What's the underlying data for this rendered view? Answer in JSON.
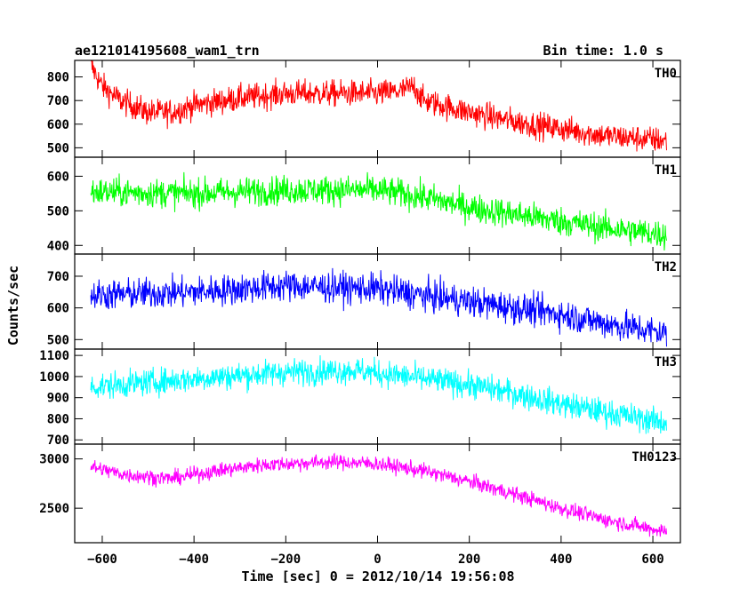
{
  "header": {
    "title": "ae121014195608_wam1_trn",
    "bin_time": "Bin time: 1.0 s"
  },
  "chart_data": {
    "type": "line",
    "x_range": [
      -660,
      660
    ],
    "x_ticks": [
      -600,
      -400,
      -200,
      0,
      200,
      400,
      600
    ],
    "xlabel": "Time [sec] 0 = 2012/10/14 19:56:08",
    "ylabel": "Counts/sec",
    "panels": [
      {
        "name": "TH0",
        "color": "#ff0000",
        "ylim": [
          460,
          870
        ],
        "y_ticks": [
          500,
          600,
          700,
          800
        ],
        "trend": [
          [
            -625,
            850
          ],
          [
            -600,
            760
          ],
          [
            -560,
            700
          ],
          [
            -500,
            650
          ],
          [
            -450,
            650
          ],
          [
            -400,
            680
          ],
          [
            -300,
            710
          ],
          [
            -200,
            730
          ],
          [
            -100,
            730
          ],
          [
            0,
            730
          ],
          [
            50,
            740
          ],
          [
            80,
            760
          ],
          [
            100,
            700
          ],
          [
            200,
            650
          ],
          [
            300,
            610
          ],
          [
            400,
            580
          ],
          [
            500,
            550
          ],
          [
            630,
            530
          ]
        ],
        "noise": 40
      },
      {
        "name": "TH1",
        "color": "#00ff00",
        "ylim": [
          375,
          655
        ],
        "y_ticks": [
          400,
          500,
          600
        ],
        "trend": [
          [
            -625,
            555
          ],
          [
            -400,
            550
          ],
          [
            -200,
            560
          ],
          [
            0,
            560
          ],
          [
            100,
            540
          ],
          [
            200,
            510
          ],
          [
            300,
            490
          ],
          [
            400,
            470
          ],
          [
            500,
            450
          ],
          [
            630,
            430
          ]
        ],
        "noise": 30
      },
      {
        "name": "TH2",
        "color": "#0000ff",
        "ylim": [
          470,
          770
        ],
        "y_ticks": [
          500,
          600,
          700
        ],
        "trend": [
          [
            -625,
            640
          ],
          [
            -400,
            650
          ],
          [
            -200,
            670
          ],
          [
            0,
            660
          ],
          [
            100,
            640
          ],
          [
            200,
            620
          ],
          [
            300,
            600
          ],
          [
            400,
            580
          ],
          [
            500,
            550
          ],
          [
            630,
            520
          ]
        ],
        "noise": 35
      },
      {
        "name": "TH3",
        "color": "#00ffff",
        "ylim": [
          680,
          1130
        ],
        "y_ticks": [
          700,
          800,
          900,
          1000,
          1100
        ],
        "trend": [
          [
            -625,
            950
          ],
          [
            -400,
            990
          ],
          [
            -200,
            1020
          ],
          [
            -50,
            1030
          ],
          [
            100,
            990
          ],
          [
            200,
            960
          ],
          [
            300,
            920
          ],
          [
            400,
            870
          ],
          [
            500,
            830
          ],
          [
            630,
            780
          ]
        ],
        "noise": 45
      },
      {
        "name": "TH0123",
        "color": "#ff00ff",
        "ylim": [
          2150,
          3150
        ],
        "y_ticks": [
          2500,
          3000
        ],
        "trend": [
          [
            -625,
            2920
          ],
          [
            -550,
            2840
          ],
          [
            -450,
            2800
          ],
          [
            -350,
            2880
          ],
          [
            -250,
            2940
          ],
          [
            -100,
            2970
          ],
          [
            0,
            2950
          ],
          [
            100,
            2880
          ],
          [
            200,
            2770
          ],
          [
            300,
            2640
          ],
          [
            400,
            2500
          ],
          [
            500,
            2380
          ],
          [
            630,
            2260
          ]
        ],
        "noise": 55
      }
    ]
  }
}
